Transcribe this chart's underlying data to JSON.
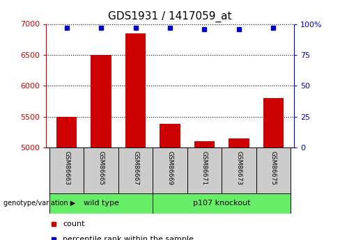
{
  "title": "GDS1931 / 1417059_at",
  "samples": [
    "GSM86663",
    "GSM86665",
    "GSM86667",
    "GSM86669",
    "GSM86671",
    "GSM86673",
    "GSM86675"
  ],
  "counts": [
    5500,
    6500,
    6850,
    5380,
    5100,
    5150,
    5800
  ],
  "percentiles": [
    97,
    97,
    97,
    97,
    96,
    96,
    97
  ],
  "ylim_left": [
    5000,
    7000
  ],
  "ylim_right": [
    0,
    100
  ],
  "yticks_left": [
    5000,
    5500,
    6000,
    6500,
    7000
  ],
  "yticks_right": [
    0,
    25,
    50,
    75,
    100
  ],
  "bar_color": "#cc0000",
  "dot_color": "#0000cc",
  "group1_label": "wild type",
  "group2_label": "p107 knockout",
  "group1_indices": [
    0,
    1,
    2
  ],
  "group2_indices": [
    3,
    4,
    5,
    6
  ],
  "group_bg": "#66ee66",
  "sample_bg": "#cccccc",
  "genotype_label": "genotype/variation",
  "legend_count": "count",
  "legend_percentile": "percentile rank within the sample",
  "grid_color": "#000000",
  "right_axis_color": "#0000cc",
  "left_axis_color": "#cc0000",
  "fig_width": 4.88,
  "fig_height": 3.45,
  "dpi": 100
}
